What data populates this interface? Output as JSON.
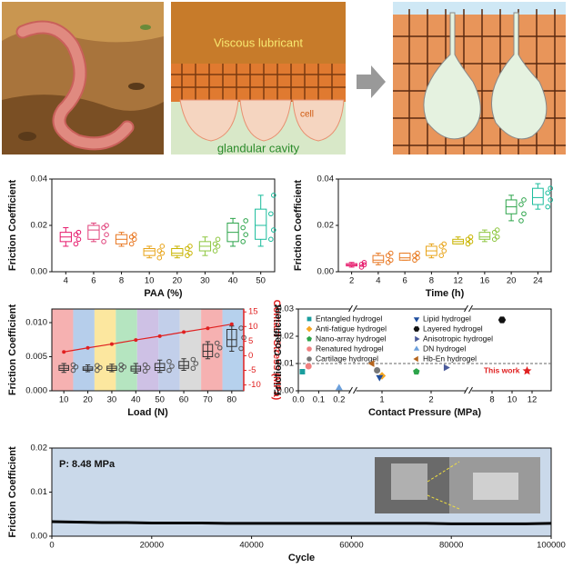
{
  "illustration": {
    "labels": [
      "Viscous lubricant",
      "cell",
      "glandular cavity"
    ]
  },
  "chart_data": [
    {
      "type": "box",
      "xlabel": "PAA (%)",
      "ylabel": "Friction Coefficient",
      "categories": [
        "4",
        "6",
        "8",
        "10",
        "20",
        "30",
        "40",
        "50"
      ],
      "ylim": [
        0,
        0.04
      ],
      "yticks": [
        {
          "value": 0,
          "label": "0.00"
        },
        {
          "value": 0.02,
          "label": "0.02"
        },
        {
          "value": 0.04,
          "label": "0.04"
        }
      ],
      "colors": [
        "#e6196b",
        "#e0407a",
        "#e87722",
        "#e8a317",
        "#c9b400",
        "#8dc63f",
        "#2ca44a",
        "#1abc9c"
      ],
      "boxes": [
        {
          "min": 0.011,
          "q1": 0.013,
          "median": 0.015,
          "q3": 0.017,
          "max": 0.019,
          "points": [
            0.012,
            0.014,
            0.016,
            0.017
          ]
        },
        {
          "min": 0.013,
          "q1": 0.014,
          "median": 0.018,
          "q3": 0.02,
          "max": 0.021,
          "points": [
            0.013,
            0.016,
            0.019,
            0.02
          ]
        },
        {
          "min": 0.011,
          "q1": 0.012,
          "median": 0.014,
          "q3": 0.016,
          "max": 0.017,
          "points": [
            0.012,
            0.014,
            0.015,
            0.016
          ]
        },
        {
          "min": 0.006,
          "q1": 0.007,
          "median": 0.009,
          "q3": 0.01,
          "max": 0.011,
          "points": [
            0.006,
            0.008,
            0.009,
            0.011
          ]
        },
        {
          "min": 0.006,
          "q1": 0.007,
          "median": 0.008,
          "q3": 0.01,
          "max": 0.011,
          "points": [
            0.007,
            0.008,
            0.01,
            0.011
          ]
        },
        {
          "min": 0.007,
          "q1": 0.009,
          "median": 0.011,
          "q3": 0.013,
          "max": 0.015,
          "points": [
            0.009,
            0.011,
            0.012,
            0.014
          ]
        },
        {
          "min": 0.011,
          "q1": 0.013,
          "median": 0.017,
          "q3": 0.021,
          "max": 0.023,
          "points": [
            0.013,
            0.016,
            0.019,
            0.022
          ]
        },
        {
          "min": 0.011,
          "q1": 0.014,
          "median": 0.02,
          "q3": 0.027,
          "max": 0.033,
          "points": [
            0.014,
            0.018,
            0.025,
            0.033
          ]
        }
      ]
    },
    {
      "type": "box",
      "xlabel": "Time (h)",
      "ylabel": "Friction Coefficient",
      "categories": [
        "2",
        "4",
        "6",
        "8",
        "12",
        "16",
        "20",
        "24"
      ],
      "ylim": [
        0,
        0.04
      ],
      "yticks": [
        {
          "value": 0,
          "label": "0.00"
        },
        {
          "value": 0.02,
          "label": "0.02"
        },
        {
          "value": 0.04,
          "label": "0.04"
        }
      ],
      "colors": [
        "#e6196b",
        "#e87722",
        "#e8791f",
        "#e8a317",
        "#c9b400",
        "#8dc63f",
        "#2ca44a",
        "#1abc9c"
      ],
      "boxes": [
        {
          "min": 0.002,
          "q1": 0.0025,
          "median": 0.003,
          "q3": 0.0035,
          "max": 0.004,
          "points": [
            0.002,
            0.003,
            0.0032,
            0.004
          ]
        },
        {
          "min": 0.003,
          "q1": 0.004,
          "median": 0.005,
          "q3": 0.007,
          "max": 0.008,
          "points": [
            0.004,
            0.005,
            0.007,
            0.008
          ]
        },
        {
          "min": 0.005,
          "q1": 0.005,
          "median": 0.006,
          "q3": 0.008,
          "max": 0.008,
          "points": [
            0.005,
            0.006,
            0.007,
            0.008
          ]
        },
        {
          "min": 0.006,
          "q1": 0.007,
          "median": 0.009,
          "q3": 0.011,
          "max": 0.012,
          "points": [
            0.007,
            0.009,
            0.011,
            0.012
          ]
        },
        {
          "min": 0.012,
          "q1": 0.012,
          "median": 0.013,
          "q3": 0.014,
          "max": 0.015,
          "points": [
            0.012,
            0.013,
            0.014,
            0.015
          ]
        },
        {
          "min": 0.013,
          "q1": 0.014,
          "median": 0.015,
          "q3": 0.017,
          "max": 0.018,
          "points": [
            0.014,
            0.015,
            0.017,
            0.018
          ]
        },
        {
          "min": 0.022,
          "q1": 0.025,
          "median": 0.028,
          "q3": 0.031,
          "max": 0.033,
          "points": [
            0.022,
            0.025,
            0.029,
            0.031
          ]
        },
        {
          "min": 0.027,
          "q1": 0.029,
          "median": 0.032,
          "q3": 0.036,
          "max": 0.038,
          "points": [
            0.028,
            0.031,
            0.034,
            0.036
          ]
        }
      ]
    },
    {
      "type": "box",
      "xlabel": "Load (N)",
      "ylabel": "Friction Coefficient",
      "categories": [
        "10",
        "20",
        "30",
        "40",
        "50",
        "60",
        "70",
        "80"
      ],
      "ylim": [
        0,
        0.012
      ],
      "yticks": [
        {
          "value": 0,
          "label": "0.000"
        },
        {
          "value": 0.005,
          "label": "0.005"
        },
        {
          "value": 0.01,
          "label": "0.010"
        }
      ],
      "color": "#333333",
      "band_colors": [
        "#f4a3a3",
        "#a9c6e8",
        "#fbe38e",
        "#a8e0b5",
        "#c6b6e0",
        "#b7c7e6",
        "#d3d3d3",
        "#f5a3a3",
        "#a9c9ea"
      ],
      "boxes": [
        {
          "min": 0.0027,
          "q1": 0.003,
          "median": 0.0033,
          "q3": 0.0037,
          "max": 0.004,
          "points": [
            0.003,
            0.0035,
            0.0038
          ]
        },
        {
          "min": 0.0028,
          "q1": 0.003,
          "median": 0.0032,
          "q3": 0.0035,
          "max": 0.0038,
          "points": [
            0.003,
            0.0034,
            0.0037
          ]
        },
        {
          "min": 0.0028,
          "q1": 0.003,
          "median": 0.0033,
          "q3": 0.0036,
          "max": 0.0039,
          "points": [
            0.0031,
            0.0035,
            0.0038
          ]
        },
        {
          "min": 0.0026,
          "q1": 0.0029,
          "median": 0.0032,
          "q3": 0.0036,
          "max": 0.004,
          "points": [
            0.0029,
            0.0034,
            0.0038
          ]
        },
        {
          "min": 0.0027,
          "q1": 0.003,
          "median": 0.0034,
          "q3": 0.004,
          "max": 0.0045,
          "points": [
            0.003,
            0.0036,
            0.0043
          ]
        },
        {
          "min": 0.003,
          "q1": 0.0033,
          "median": 0.0037,
          "q3": 0.0043,
          "max": 0.0047,
          "points": [
            0.0033,
            0.004,
            0.0046
          ]
        },
        {
          "min": 0.0047,
          "q1": 0.005,
          "median": 0.0058,
          "q3": 0.0068,
          "max": 0.0072,
          "points": [
            0.0052,
            0.0063,
            0.007
          ]
        },
        {
          "min": 0.0058,
          "q1": 0.0065,
          "median": 0.0075,
          "q3": 0.009,
          "max": 0.0095,
          "points": [
            0.0062,
            0.0078,
            0.0092
          ]
        }
      ],
      "y2label": "Contact Stress (MPa)",
      "y2lim": [
        -12,
        16
      ],
      "y2ticks": [
        -10,
        -5,
        0,
        5,
        10,
        15
      ],
      "line": {
        "axis": "y2",
        "color": "#e02020",
        "values": [
          1.3,
          2.7,
          4.0,
          5.4,
          6.7,
          8.1,
          9.4,
          10.8
        ]
      }
    },
    {
      "type": "scatter",
      "xlabel": "Contact Pressure (MPa)",
      "ylabel": "Friction Coefficient",
      "xlim": [
        [
          0,
          0.25
        ],
        [
          0.5,
          2.5
        ],
        [
          7,
          13
        ]
      ],
      "xticks": [
        {
          "value": 0,
          "label": "0.0"
        },
        {
          "value": 0.1,
          "label": "0.1"
        },
        {
          "value": 0.2,
          "label": "0.2"
        },
        1,
        2,
        8,
        10,
        12
      ],
      "ylim": [
        0,
        0.03
      ],
      "yticks": [
        {
          "value": 0,
          "label": "0.00"
        },
        {
          "value": 0.01,
          "label": "0.01"
        },
        {
          "value": 0.02,
          "label": "0.02"
        },
        {
          "value": 0.03,
          "label": "0.03"
        }
      ],
      "reference_y": 0.01,
      "series": [
        {
          "name": "Entangled hydrogel",
          "color": "#1a9e9e",
          "marker": "square",
          "x": 0.02,
          "y": 0.007
        },
        {
          "name": "Anti-fatigue hydrogel",
          "color": "#f5a623",
          "marker": "diamond",
          "x": 1.0,
          "y": 0.0055
        },
        {
          "name": "Nano-array hydrogel",
          "color": "#2ca44a",
          "marker": "pentagon",
          "x": 1.7,
          "y": 0.007
        },
        {
          "name": "Renatured hydrogel",
          "color": "#f08080",
          "marker": "circle",
          "x": 0.05,
          "y": 0.009
        },
        {
          "name": "Cartilage hydrogel",
          "color": "#777777",
          "marker": "circle",
          "x": 0.9,
          "y": 0.0075
        },
        {
          "name": "Lipid hydrogel",
          "color": "#1f4e9e",
          "marker": "tri-down",
          "x": 0.95,
          "y": 0.005
        },
        {
          "name": "Layered hydrogel",
          "color": "#111111",
          "marker": "hexagon",
          "x": 9,
          "y": 0.026
        },
        {
          "name": "Anisotropic hydrogel",
          "color": "#4a5a9a",
          "marker": "tri-right",
          "x": 2.3,
          "y": 0.0085
        },
        {
          "name": "DN hydrogel",
          "color": "#6ca0dc",
          "marker": "tri-up",
          "x": 0.2,
          "y": 0.001
        },
        {
          "name": "Hb-En hydrogel",
          "color": "#b5651d",
          "marker": "tri-left",
          "x": 0.8,
          "y": 0.01
        },
        {
          "name": "This work",
          "color": "#e02020",
          "marker": "star",
          "x": 11.5,
          "y": 0.0073
        }
      ]
    },
    {
      "type": "line",
      "xlabel": "Cycle",
      "ylabel": "Friction Coefficient",
      "annotation": "P: 8.48 MPa",
      "background": "#cad9ea",
      "color": "#000000",
      "xlim": [
        0,
        100000
      ],
      "xticks": [
        0,
        20000,
        40000,
        60000,
        80000,
        100000
      ],
      "ylim": [
        0,
        0.02
      ],
      "yticks": [
        {
          "value": 0,
          "label": "0.00"
        },
        {
          "value": 0.01,
          "label": "0.01"
        },
        {
          "value": 0.02,
          "label": "0.02"
        }
      ],
      "x": [
        0,
        5000,
        10000,
        15000,
        20000,
        25000,
        30000,
        35000,
        40000,
        45000,
        50000,
        55000,
        60000,
        65000,
        70000,
        75000,
        80000,
        85000,
        90000,
        95000,
        100000
      ],
      "values": [
        0.0033,
        0.0032,
        0.0031,
        0.0031,
        0.003,
        0.003,
        0.003,
        0.0029,
        0.0029,
        0.0029,
        0.0029,
        0.0029,
        0.0029,
        0.0029,
        0.0029,
        0.0029,
        0.0028,
        0.0028,
        0.0028,
        0.0028,
        0.0029
      ]
    }
  ]
}
